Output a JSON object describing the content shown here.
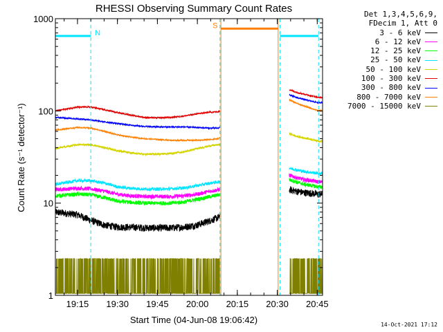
{
  "chart_data": {
    "type": "line",
    "title": "RHESSI Observing Summary Count Rates",
    "xlabel": "Start Time (04-Jun-08 19:06:42)",
    "ylabel": "Count Rate (s⁻¹ detector⁻¹)",
    "yscale": "log",
    "ylim": [
      1,
      1000
    ],
    "xlim": [
      "19:06:42",
      "20:47:00"
    ],
    "y_ticks": [
      "1",
      "10",
      "100",
      "1000"
    ],
    "x_ticks": [
      "19:15",
      "19:30",
      "19:45",
      "20:00",
      "20:15",
      "20:30",
      "20:45"
    ],
    "grid": false,
    "legend_position": "right-outside",
    "legend_header": [
      "Det 1,3,4,5,6,9,",
      "FDecim 1, Att 0"
    ],
    "flags": [
      {
        "label": "N",
        "color": "#00e5ff",
        "value": 650,
        "ranges": [
          [
            "19:06:42",
            "19:20:00"
          ],
          [
            "20:31:00",
            "20:45:30"
          ]
        ]
      },
      {
        "label": "S",
        "color": "#ff8000",
        "value": 780,
        "ranges": [
          [
            "20:08:50",
            "20:30:20"
          ]
        ]
      }
    ],
    "markers": [
      {
        "time": "19:06:42",
        "color": "#00e5ff"
      },
      {
        "time": "19:20:00",
        "color": "#00e5ff"
      },
      {
        "time": "20:08:30",
        "color": "#00e5ff"
      },
      {
        "time": "20:31:00",
        "color": "#00e5ff"
      },
      {
        "time": "20:45:30",
        "color": "#00e5ff"
      },
      {
        "time": "20:08:50",
        "color": "#ff8000"
      },
      {
        "time": "20:30:20",
        "color": "#ff8000"
      }
    ],
    "data_gap": [
      "20:08:30",
      "20:34:30"
    ],
    "x": [
      "19:06:42",
      "19:15",
      "19:20",
      "19:25",
      "19:30",
      "19:35",
      "19:40",
      "19:45",
      "19:50",
      "19:55",
      "20:00",
      "20:05",
      "20:08",
      "20:34:30",
      "20:37",
      "20:40",
      "20:43",
      "20:45:30"
    ],
    "series": [
      {
        "name": "3 - 6 keV",
        "color": "#000000",
        "noise": 0.09,
        "values": [
          8,
          7.5,
          6.5,
          5.8,
          5.5,
          5.5,
          5.4,
          5.4,
          5.4,
          5.5,
          5.8,
          6.5,
          7,
          14,
          13.5,
          13,
          12.8,
          12.5
        ]
      },
      {
        "name": "6 - 12 keV",
        "color": "#ff00ff",
        "noise": 0.05,
        "values": [
          14,
          14.5,
          14.3,
          13.5,
          12.5,
          12,
          11.8,
          11.8,
          11.8,
          12,
          12.5,
          13.5,
          14,
          20,
          19,
          18,
          17.5,
          17
        ]
      },
      {
        "name": "12 - 25 keV",
        "color": "#00ff00",
        "noise": 0.05,
        "values": [
          12,
          12.5,
          12.3,
          11.5,
          10.5,
          10.2,
          10,
          10,
          10,
          10.3,
          11,
          11.8,
          12.3,
          18,
          17,
          16,
          15.5,
          15
        ]
      },
      {
        "name": "25 - 50 keV",
        "color": "#00e5ff",
        "noise": 0.04,
        "values": [
          16,
          17.5,
          17.5,
          16.5,
          15,
          14.5,
          14.2,
          14.2,
          14.3,
          14.6,
          15.5,
          16.5,
          17,
          24,
          23,
          22,
          21.5,
          21
        ]
      },
      {
        "name": "50 - 100 keV",
        "color": "#d4d400",
        "noise": 0.025,
        "values": [
          39,
          43,
          43,
          40,
          37,
          35,
          34,
          34,
          34.5,
          36,
          39,
          42,
          43,
          57,
          53,
          51,
          49,
          47
        ]
      },
      {
        "name": "100 - 300 keV",
        "color": "#e00000",
        "noise": 0.018,
        "values": [
          100,
          110,
          110,
          103,
          96,
          90,
          85,
          84,
          85,
          88,
          93,
          97,
          98,
          170,
          160,
          152,
          145,
          140
        ]
      },
      {
        "name": "300 - 800 keV",
        "color": "#0000ff",
        "noise": 0.018,
        "values": [
          85,
          82,
          80,
          76,
          73,
          70,
          68,
          67,
          67,
          67,
          66,
          65,
          65,
          150,
          140,
          133,
          127,
          123
        ]
      },
      {
        "name": "800 - 7000 keV",
        "color": "#ff8000",
        "noise": 0.015,
        "values": [
          62,
          66,
          65,
          60,
          55,
          52,
          50,
          49,
          48,
          48,
          48,
          49,
          50,
          132,
          122,
          113,
          106,
          100
        ]
      },
      {
        "name": "7000 - 15000 keV",
        "color": "#808000",
        "noise": 0,
        "values": [
          2.5,
          2.5,
          2.5,
          2.5,
          2.5,
          2.5,
          2.5,
          2.5,
          2.5,
          2.5,
          2.5,
          2.5,
          2.5,
          2.5,
          2.5,
          2.5,
          2.5,
          2.5
        ]
      }
    ]
  },
  "timestamp": "14-Oct-2021 17:12"
}
